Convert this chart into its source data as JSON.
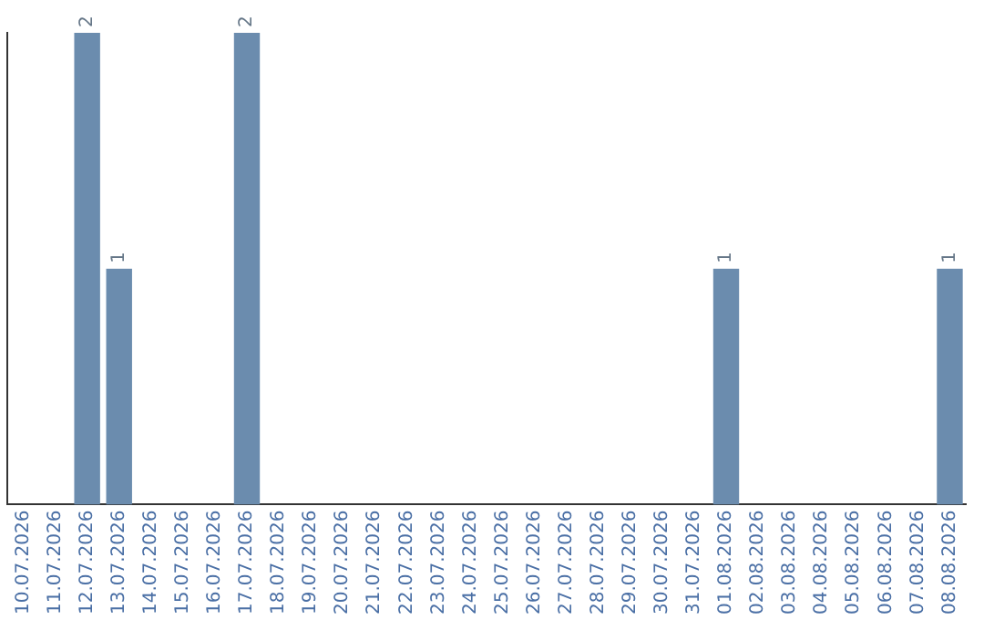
{
  "chart_data": {
    "type": "bar",
    "categories": [
      "10.07.2026",
      "11.07.2026",
      "12.07.2026",
      "13.07.2026",
      "14.07.2026",
      "15.07.2026",
      "16.07.2026",
      "17.07.2026",
      "18.07.2026",
      "19.07.2026",
      "20.07.2026",
      "21.07.2026",
      "22.07.2026",
      "23.07.2026",
      "24.07.2026",
      "25.07.2026",
      "26.07.2026",
      "27.07.2026",
      "28.07.2026",
      "29.07.2026",
      "30.07.2026",
      "31.07.2026",
      "01.08.2026",
      "02.08.2026",
      "03.08.2026",
      "04.08.2026",
      "05.08.2026",
      "06.08.2026",
      "07.08.2026",
      "08.08.2026"
    ],
    "values": [
      0,
      0,
      2,
      1,
      0,
      0,
      0,
      2,
      0,
      0,
      0,
      0,
      0,
      0,
      0,
      0,
      0,
      0,
      0,
      0,
      0,
      0,
      1,
      0,
      0,
      0,
      0,
      0,
      0,
      1
    ],
    "value_labels": [
      null,
      null,
      "2",
      "1",
      null,
      null,
      null,
      "2",
      null,
      null,
      null,
      null,
      null,
      null,
      null,
      null,
      null,
      null,
      null,
      null,
      null,
      null,
      "1",
      null,
      null,
      null,
      null,
      null,
      null,
      "1"
    ],
    "color": "#6b8cae",
    "grid": false,
    "legend": false,
    "tick_labels": "x"
  }
}
